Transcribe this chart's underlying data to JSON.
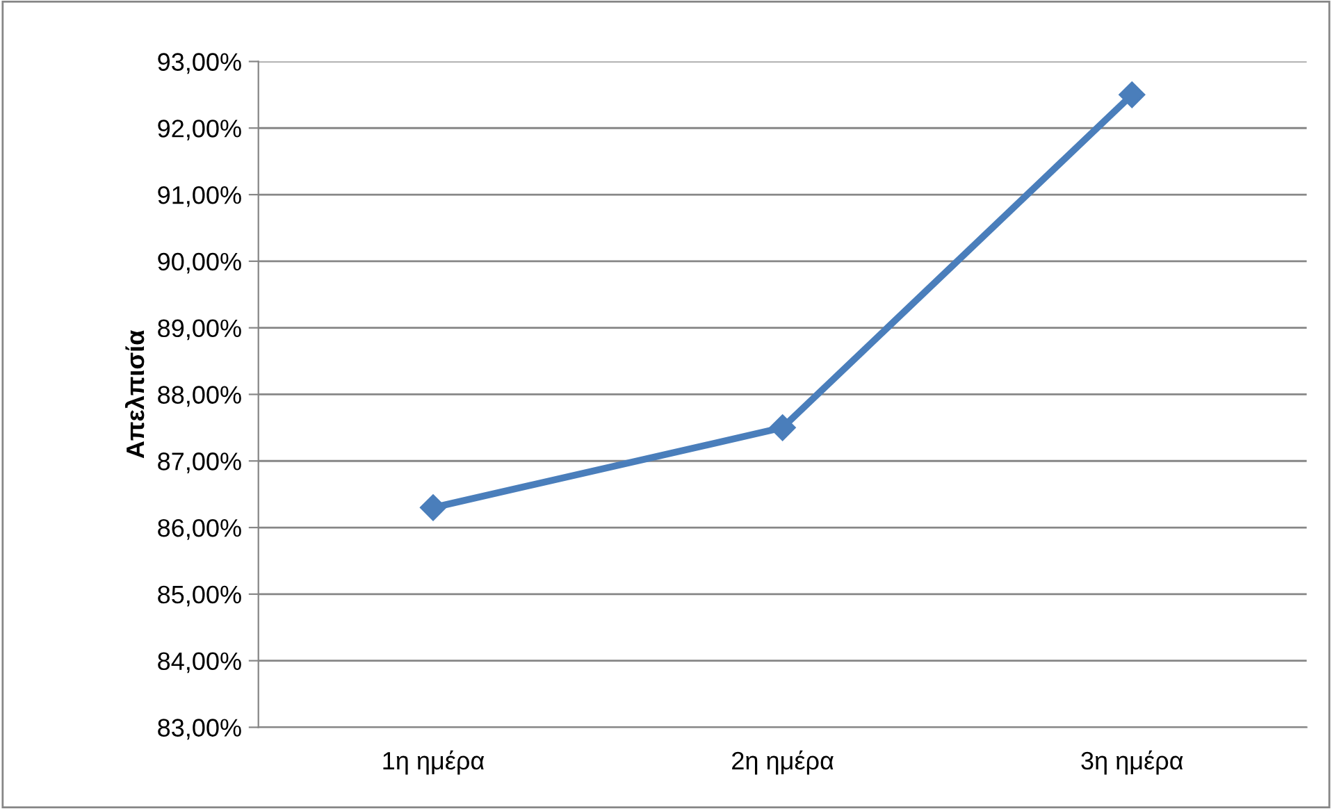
{
  "chart_data": {
    "type": "line",
    "ylabel": "Απελπισία",
    "categories": [
      "1η ημέρα",
      "2η ημέρα",
      "3η ημέρα"
    ],
    "series": [
      {
        "color": "#4a7ebb",
        "values": [
          86.3,
          87.5,
          92.5
        ]
      }
    ],
    "ylim": [
      83,
      93
    ],
    "yticks": [
      {
        "value": 83,
        "label": "83,00%"
      },
      {
        "value": 84,
        "label": "84,00%"
      },
      {
        "value": 85,
        "label": "85,00%"
      },
      {
        "value": 86,
        "label": "86,00%"
      },
      {
        "value": 87,
        "label": "87,00%"
      },
      {
        "value": 88,
        "label": "88,00%"
      },
      {
        "value": 89,
        "label": "89,00%"
      },
      {
        "value": 90,
        "label": "90,00%"
      },
      {
        "value": 91,
        "label": "91,00%"
      },
      {
        "value": 92,
        "label": "92,00%"
      },
      {
        "value": 93,
        "label": "93,00%"
      }
    ],
    "grid": "y",
    "marker": "diamond",
    "line_style": "solid"
  }
}
